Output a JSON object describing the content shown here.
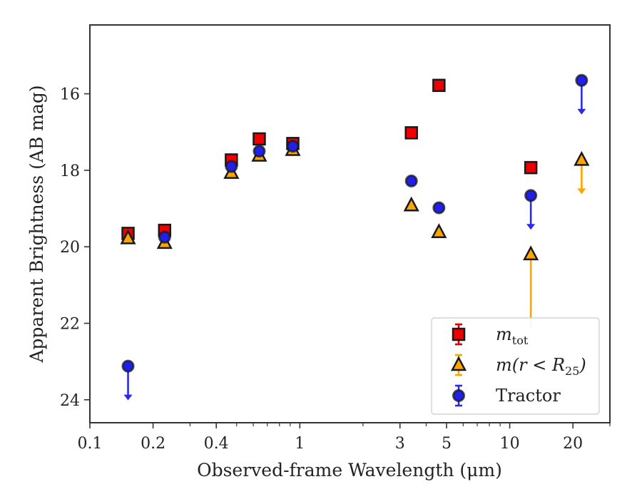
{
  "chart_data": {
    "type": "scatter",
    "title": "",
    "xlabel": "Observed-frame Wavelength (μm)",
    "ylabel": "Apparent Brightness (AB mag)",
    "xscale": "log",
    "xlim": [
      0.1,
      30
    ],
    "ylim": [
      24.6,
      14.2
    ],
    "y_inverted": true,
    "grid": false,
    "legend_position": "lower-right",
    "x_ticks": [
      {
        "value": 0.1,
        "label": "0.1"
      },
      {
        "value": 0.2,
        "label": "0.2"
      },
      {
        "value": 0.4,
        "label": "0.4"
      },
      {
        "value": 1,
        "label": "1"
      },
      {
        "value": 3,
        "label": "3"
      },
      {
        "value": 5,
        "label": "5"
      },
      {
        "value": 10,
        "label": "10"
      },
      {
        "value": 20,
        "label": "20"
      }
    ],
    "y_ticks": [
      {
        "value": 16,
        "label": "16"
      },
      {
        "value": 18,
        "label": "18"
      },
      {
        "value": 20,
        "label": "20"
      },
      {
        "value": 22,
        "label": "22"
      },
      {
        "value": 24,
        "label": "24"
      }
    ],
    "series": [
      {
        "name": "m_tot",
        "legend_main": "m",
        "legend_sub": "tot",
        "marker": "square",
        "color": "#ee0000",
        "error_color": "#dd0000",
        "points": [
          {
            "x": 0.152,
            "y": 19.65,
            "err": 0.05
          },
          {
            "x": 0.227,
            "y": 19.57,
            "err": 0.05
          },
          {
            "x": 0.472,
            "y": 17.73,
            "err": 0.03
          },
          {
            "x": 0.641,
            "y": 17.18,
            "err": 0.03
          },
          {
            "x": 0.926,
            "y": 17.3,
            "err": 0.03
          },
          {
            "x": 3.4,
            "y": 17.02,
            "err": 0.03
          },
          {
            "x": 4.6,
            "y": 15.78,
            "err": 0.03
          },
          {
            "x": 12.6,
            "y": 17.93,
            "err": 0.05
          }
        ]
      },
      {
        "name": "m(r < R25)",
        "legend_main": "m(r < R",
        "legend_sub": "25",
        "legend_end": ")",
        "marker": "triangle",
        "color": "#ffa500",
        "error_color": "#ffa500",
        "points": [
          {
            "x": 0.152,
            "y": 19.78,
            "err": 0.15
          },
          {
            "x": 0.227,
            "y": 19.9,
            "err": 0.05
          },
          {
            "x": 0.472,
            "y": 18.07,
            "err": 0.03
          },
          {
            "x": 0.641,
            "y": 17.62,
            "err": 0.03
          },
          {
            "x": 0.926,
            "y": 17.47,
            "err": 0.03
          },
          {
            "x": 3.4,
            "y": 18.92,
            "err": 0.03
          },
          {
            "x": 4.6,
            "y": 19.62,
            "err": 0.03
          },
          {
            "x": 12.6,
            "y": 20.2,
            "err_up": 0.0,
            "err_down": 1.9
          },
          {
            "x": 22.0,
            "y": 17.73,
            "upper_limit": true
          }
        ]
      },
      {
        "name": "Tractor",
        "legend_main": "Tractor",
        "marker": "circle",
        "color": "#2020ee",
        "error_color": "#2b2bee",
        "points": [
          {
            "x": 0.152,
            "y": 23.12,
            "upper_limit": true
          },
          {
            "x": 0.227,
            "y": 19.75,
            "err": 0.03
          },
          {
            "x": 0.472,
            "y": 17.9,
            "err": 0.03
          },
          {
            "x": 0.641,
            "y": 17.5,
            "err": 0.03
          },
          {
            "x": 0.926,
            "y": 17.37,
            "err": 0.03
          },
          {
            "x": 3.4,
            "y": 18.28,
            "err": 0.03
          },
          {
            "x": 4.6,
            "y": 18.98,
            "err": 0.03
          },
          {
            "x": 12.6,
            "y": 18.66,
            "upper_limit": true
          },
          {
            "x": 22.0,
            "y": 15.65,
            "upper_limit": true
          }
        ]
      }
    ]
  }
}
